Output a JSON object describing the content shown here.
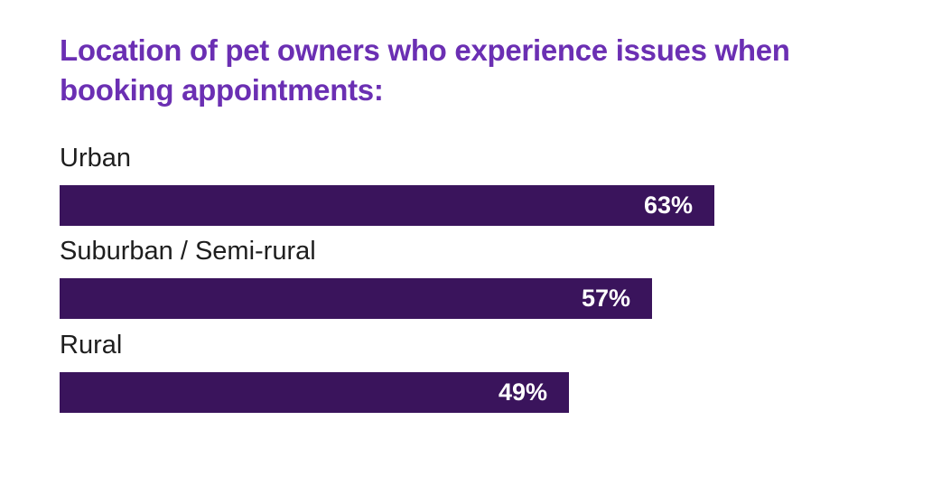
{
  "chart_data": {
    "type": "bar",
    "orientation": "horizontal",
    "title": "Location of pet owners who experience issues when booking appointments:",
    "categories": [
      "Urban",
      "Suburban / Semi-rural",
      "Rural"
    ],
    "values": [
      63,
      57,
      49
    ],
    "value_labels": [
      "63%",
      "57%",
      "49%"
    ],
    "xlim": [
      0,
      100
    ],
    "unit": "%",
    "grid": false,
    "legend": "none"
  },
  "colors": {
    "title": "#6b2fb3",
    "bar": "#3a145c",
    "label": "#1e1e1e",
    "value_text": "#ffffff"
  }
}
